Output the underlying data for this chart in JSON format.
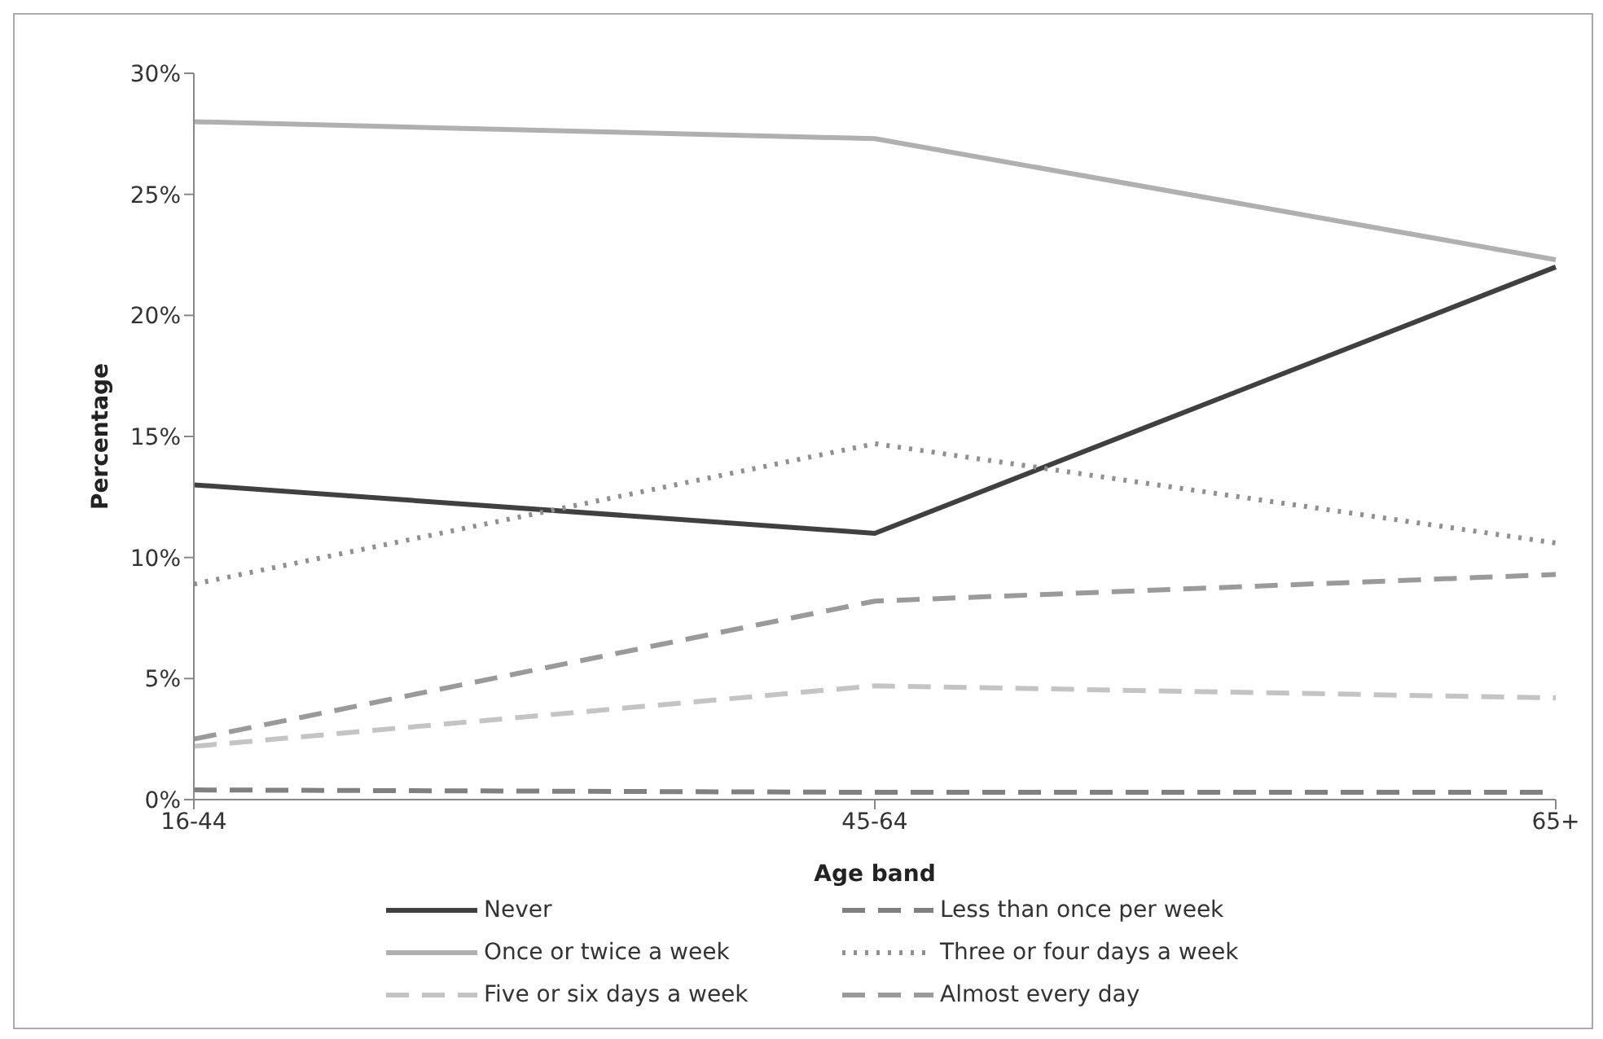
{
  "chart_data": {
    "type": "line",
    "xlabel": "Age band",
    "ylabel": "Percentage",
    "categories": [
      "16-44",
      "45-64",
      "65+"
    ],
    "series": [
      {
        "name": "Never",
        "color": "#404040",
        "line_style": "solid",
        "values": [
          13,
          11,
          22
        ]
      },
      {
        "name": "Less than once per week",
        "color": "#808080",
        "line_style": "dashed",
        "values": [
          0.4,
          0.3,
          0.3
        ]
      },
      {
        "name": "Once or twice a week",
        "color": "#b0b0b0",
        "line_style": "solid",
        "values": [
          28,
          27.3,
          22.3
        ]
      },
      {
        "name": "Three or four days a week",
        "color": "#909090",
        "line_style": "dotted",
        "values": [
          8.9,
          14.7,
          10.6
        ]
      },
      {
        "name": "Five or six days a week",
        "color": "#c4c4c4",
        "line_style": "dashed",
        "values": [
          2.2,
          4.7,
          4.2
        ]
      },
      {
        "name": "Almost every day",
        "color": "#9a9a9a",
        "line_style": "dashed",
        "values": [
          2.5,
          8.2,
          9.3
        ]
      }
    ],
    "ylim": [
      0,
      30
    ],
    "yticks": [
      {
        "value": 0,
        "label": "0%"
      },
      {
        "value": 5,
        "label": "5%"
      },
      {
        "value": 10,
        "label": "10%"
      },
      {
        "value": 15,
        "label": "15%"
      },
      {
        "value": 20,
        "label": "20%"
      },
      {
        "value": 25,
        "label": "25%"
      },
      {
        "value": 30,
        "label": "30%"
      }
    ],
    "grid": false,
    "legend": "bottom",
    "marker": "none"
  }
}
